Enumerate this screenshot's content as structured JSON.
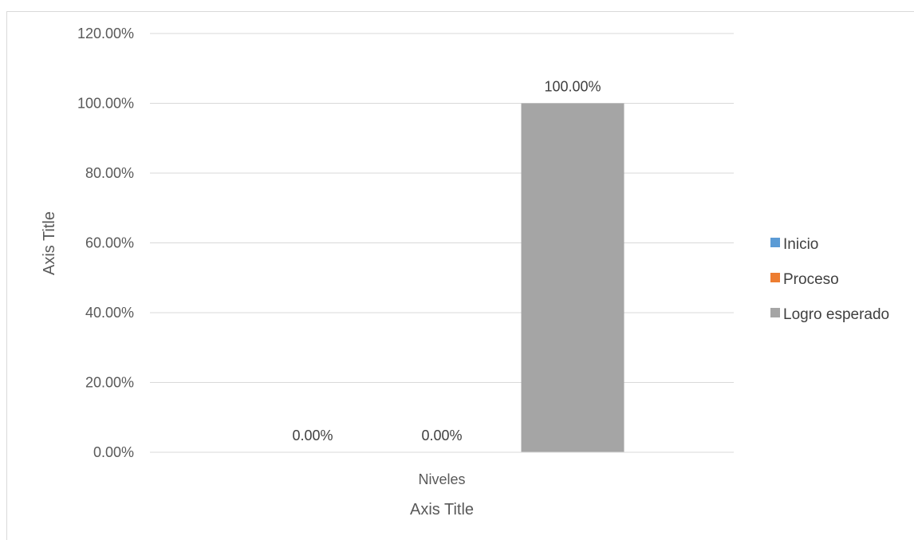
{
  "chart_data": {
    "type": "bar",
    "categories": [
      "Niveles"
    ],
    "series": [
      {
        "name": "Inicio",
        "values": [
          0
        ],
        "color": "#5b9bd5",
        "data_label": "0.00%"
      },
      {
        "name": "Proceso",
        "values": [
          0
        ],
        "color": "#ed7d31",
        "data_label": "0.00%"
      },
      {
        "name": "Logro esperado",
        "values": [
          100
        ],
        "color": "#a5a5a5",
        "data_label": "100.00%"
      }
    ],
    "xlabel": "Axis Title",
    "ylabel": "Axis Title",
    "ylim": [
      0,
      120
    ],
    "yticks": [
      "0.00%",
      "20.00%",
      "40.00%",
      "60.00%",
      "80.00%",
      "100.00%",
      "120.00%"
    ],
    "grid": true,
    "legend_position": "right"
  }
}
